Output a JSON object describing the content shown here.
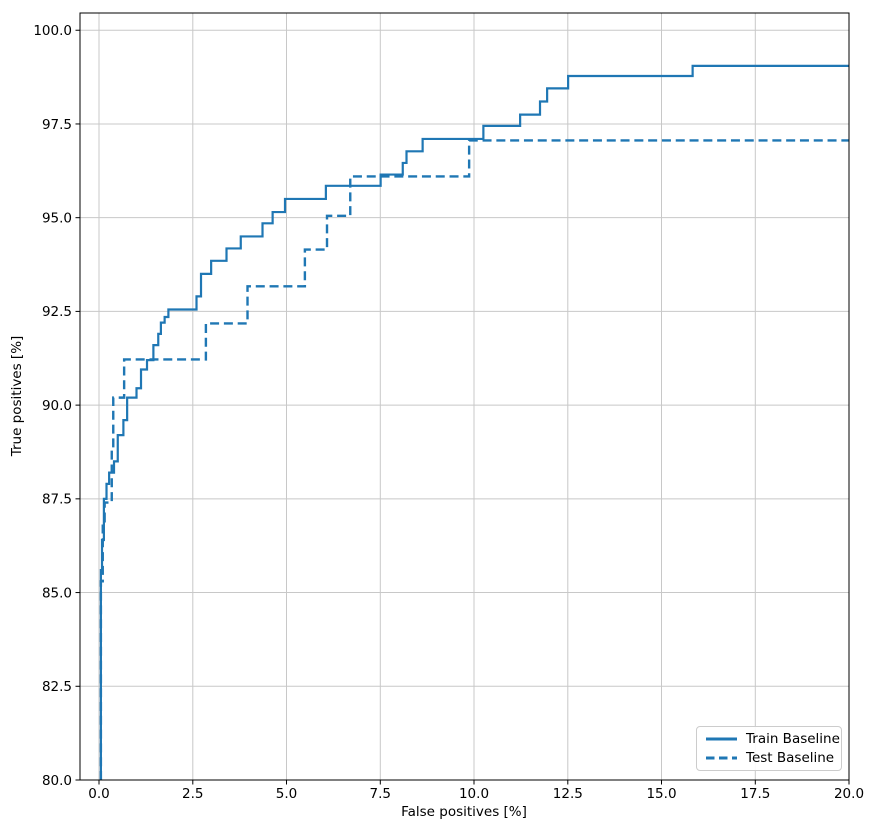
{
  "accent_color": "#1f77b4",
  "chart_data": {
    "type": "line",
    "subtype": "step",
    "title": "",
    "xlabel": "False positives [%]",
    "ylabel": "True positives [%]",
    "grid": true,
    "xlim": [
      -0.507,
      20.0
    ],
    "ylim": [
      80.0,
      100.46
    ],
    "x_ticks": [
      0.0,
      2.5,
      5.0,
      7.5,
      10.0,
      12.5,
      15.0,
      17.5,
      20.0
    ],
    "x_tick_labels": [
      "0.0",
      "2.5",
      "5.0",
      "7.5",
      "10.0",
      "12.5",
      "15.0",
      "17.5",
      "20.0"
    ],
    "y_ticks": [
      80.0,
      82.5,
      85.0,
      87.5,
      90.0,
      92.5,
      95.0,
      97.5,
      100.0
    ],
    "y_tick_labels": [
      "80.0",
      "82.5",
      "85.0",
      "87.5",
      "90.0",
      "92.5",
      "95.0",
      "97.5",
      "100.0"
    ],
    "legend": {
      "position": "lower right",
      "entries": [
        {
          "label": "Train Baseline",
          "style": "solid"
        },
        {
          "label": "Test Baseline",
          "style": "dashed"
        }
      ]
    },
    "series": [
      {
        "name": "Train Baseline",
        "style": "solid",
        "color": "#1f77b4",
        "x_end": 20.0,
        "points": [
          [
            0.05,
            80.0
          ],
          [
            0.05,
            85.6
          ],
          [
            0.08,
            86.4
          ],
          [
            0.13,
            87.5
          ],
          [
            0.2,
            87.9
          ],
          [
            0.27,
            88.2
          ],
          [
            0.4,
            88.5
          ],
          [
            0.5,
            89.2
          ],
          [
            0.65,
            89.6
          ],
          [
            0.75,
            90.2
          ],
          [
            1.0,
            90.45
          ],
          [
            1.12,
            90.95
          ],
          [
            1.28,
            91.2
          ],
          [
            1.45,
            91.6
          ],
          [
            1.58,
            91.9
          ],
          [
            1.65,
            92.2
          ],
          [
            1.75,
            92.35
          ],
          [
            1.85,
            92.55
          ],
          [
            2.6,
            92.9
          ],
          [
            2.72,
            93.5
          ],
          [
            2.99,
            93.85
          ],
          [
            3.4,
            94.18
          ],
          [
            3.78,
            94.5
          ],
          [
            4.36,
            94.85
          ],
          [
            4.63,
            95.15
          ],
          [
            4.96,
            95.5
          ],
          [
            6.05,
            95.85
          ],
          [
            7.51,
            96.15
          ],
          [
            8.1,
            96.46
          ],
          [
            8.2,
            96.77
          ],
          [
            8.63,
            97.1
          ],
          [
            10.25,
            97.45
          ],
          [
            11.23,
            97.75
          ],
          [
            11.76,
            98.1
          ],
          [
            11.95,
            98.45
          ],
          [
            12.51,
            98.78
          ],
          [
            15.83,
            99.05
          ]
        ]
      },
      {
        "name": "Test Baseline",
        "style": "dashed",
        "color": "#1f77b4",
        "x_end": 20.0,
        "points": [
          [
            0.05,
            80.0
          ],
          [
            0.05,
            85.3
          ],
          [
            0.1,
            86.9
          ],
          [
            0.15,
            87.4
          ],
          [
            0.34,
            88.8
          ],
          [
            0.38,
            90.2
          ],
          [
            0.67,
            91.22
          ],
          [
            2.85,
            92.18
          ],
          [
            3.96,
            93.17
          ],
          [
            5.49,
            94.15
          ],
          [
            6.08,
            95.05
          ],
          [
            6.7,
            96.1
          ],
          [
            9.87,
            97.06
          ]
        ]
      }
    ]
  }
}
